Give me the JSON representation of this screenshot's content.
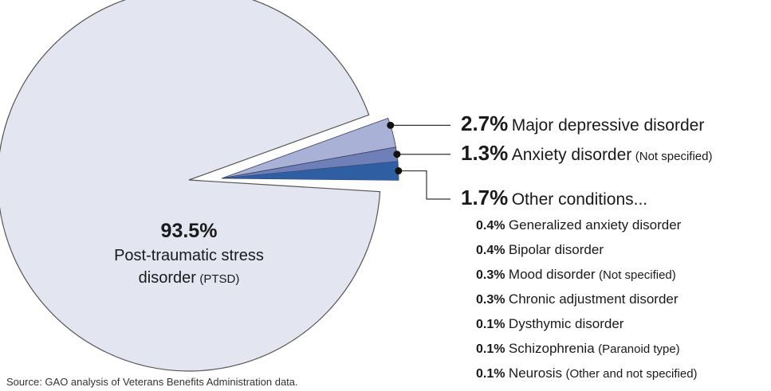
{
  "chart_data": {
    "type": "pie",
    "categories": [
      "Post-traumatic stress disorder",
      "Major depressive disorder",
      "Anxiety disorder",
      "Other conditions..."
    ],
    "notes": [
      "(PTSD)",
      null,
      "(Not specified)",
      null
    ],
    "values": [
      93.5,
      2.7,
      1.3,
      1.7
    ],
    "value_labels": [
      "93.5%",
      "2.7%",
      "1.3%",
      "1.7%"
    ],
    "colors": [
      "#e3e5f0",
      "#a9b1d6",
      "#6f7fb8",
      "#2f5ea3"
    ],
    "breakdown": {
      "categories": [
        "Generalized anxiety disorder",
        "Bipolar disorder",
        "Mood disorder",
        "Chronic adjustment disorder",
        "Dysthymic disorder",
        "Schizophrenia",
        "Neurosis"
      ],
      "notes": [
        null,
        null,
        "(Not specified)",
        null,
        null,
        "(Paranoid type)",
        "(Other and not specified)"
      ],
      "values": [
        0.4,
        0.4,
        0.3,
        0.3,
        0.1,
        0.1,
        0.1
      ],
      "value_labels": [
        "0.4%",
        "0.4%",
        "0.3%",
        "0.3%",
        "0.1%",
        "0.1%",
        "0.1%"
      ]
    },
    "source": "Source: GAO analysis of Veterans Benefits Administration data."
  }
}
